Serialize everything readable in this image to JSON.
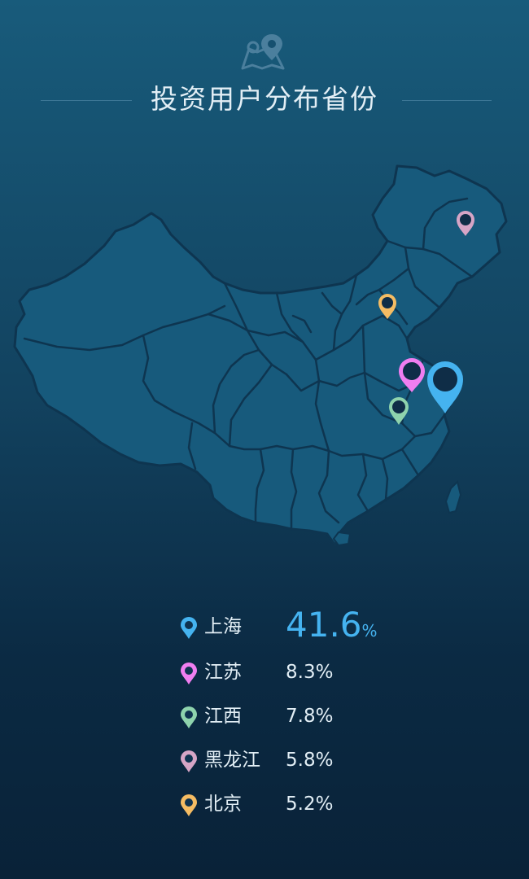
{
  "title": "投资用户分布省份",
  "header_icon": "map-pin-icon",
  "colors": {
    "shanghai": "#45b3f0",
    "jiangsu": "#f07ef0",
    "jiangxi": "#8ed3ad",
    "heilongjiang": "#d6a5c6",
    "beijing": "#f5bc63",
    "map_fill": "#175a7c",
    "map_border": "#0e3550"
  },
  "provinces": [
    {
      "name": "上海",
      "value": "41.6",
      "unit": "%",
      "color": "#45b3f0"
    },
    {
      "name": "江苏",
      "value": "8.3%",
      "color": "#f07ef0"
    },
    {
      "name": "江西",
      "value": "7.8%",
      "color": "#8ed3ad"
    },
    {
      "name": "黑龙江",
      "value": "5.8%",
      "color": "#d6a5c6"
    },
    {
      "name": "北京",
      "value": "5.2%",
      "color": "#f5bc63"
    }
  ]
}
